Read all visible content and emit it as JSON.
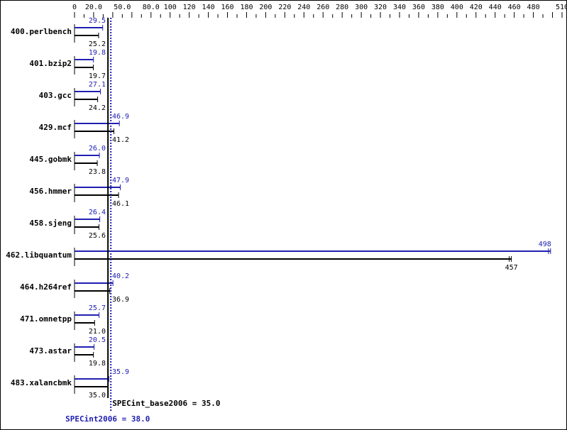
{
  "chart_data": {
    "type": "bar",
    "orientation": "horizontal",
    "xlim": [
      0,
      510
    ],
    "tick_step": 10,
    "tick_labels": [
      "0",
      "20.0",
      "50.0",
      "80.0",
      "100",
      "120",
      "140",
      "160",
      "180",
      "200",
      "220",
      "240",
      "260",
      "280",
      "300",
      "320",
      "340",
      "360",
      "380",
      "400",
      "420",
      "440",
      "460",
      "480",
      "510"
    ],
    "tick_label_values": [
      0,
      20,
      50,
      80,
      100,
      120,
      140,
      160,
      180,
      200,
      220,
      240,
      260,
      280,
      300,
      320,
      340,
      360,
      380,
      400,
      420,
      440,
      460,
      480,
      510
    ],
    "categories": [
      "400.perlbench",
      "401.bzip2",
      "403.gcc",
      "429.mcf",
      "445.gobmk",
      "456.hmmer",
      "458.sjeng",
      "462.libquantum",
      "464.h264ref",
      "471.omnetpp",
      "473.astar",
      "483.xalancbmk"
    ],
    "series": [
      {
        "key": "peak",
        "color": "#2020b0",
        "values": [
          29.5,
          19.8,
          27.1,
          46.9,
          26.0,
          47.9,
          26.4,
          498,
          40.2,
          25.7,
          20.5,
          35.9
        ],
        "labels": [
          "29.5",
          "19.8",
          "27.1",
          "46.9",
          "26.0",
          "47.9",
          "26.4",
          "498",
          "40.2",
          "25.7",
          "20.5",
          "35.9"
        ]
      },
      {
        "key": "base",
        "color": "#000000",
        "values": [
          25.2,
          19.7,
          24.2,
          41.2,
          23.8,
          46.1,
          25.6,
          457,
          36.9,
          21.0,
          19.8,
          35.0
        ],
        "labels": [
          "25.2",
          "19.7",
          "24.2",
          "41.2",
          "23.8",
          "46.1",
          "25.6",
          "457",
          "36.9",
          "21.0",
          "19.8",
          "35.0"
        ]
      }
    ],
    "reference_lines": [
      {
        "key": "base",
        "value": 35.0,
        "label": "SPECint_base2006 = 35.0",
        "style": "solid",
        "color": "#000000"
      },
      {
        "key": "peak",
        "value": 38.0,
        "label": "SPECint2006 = 38.0",
        "style": "dotted",
        "color": "#2020b0"
      }
    ]
  }
}
